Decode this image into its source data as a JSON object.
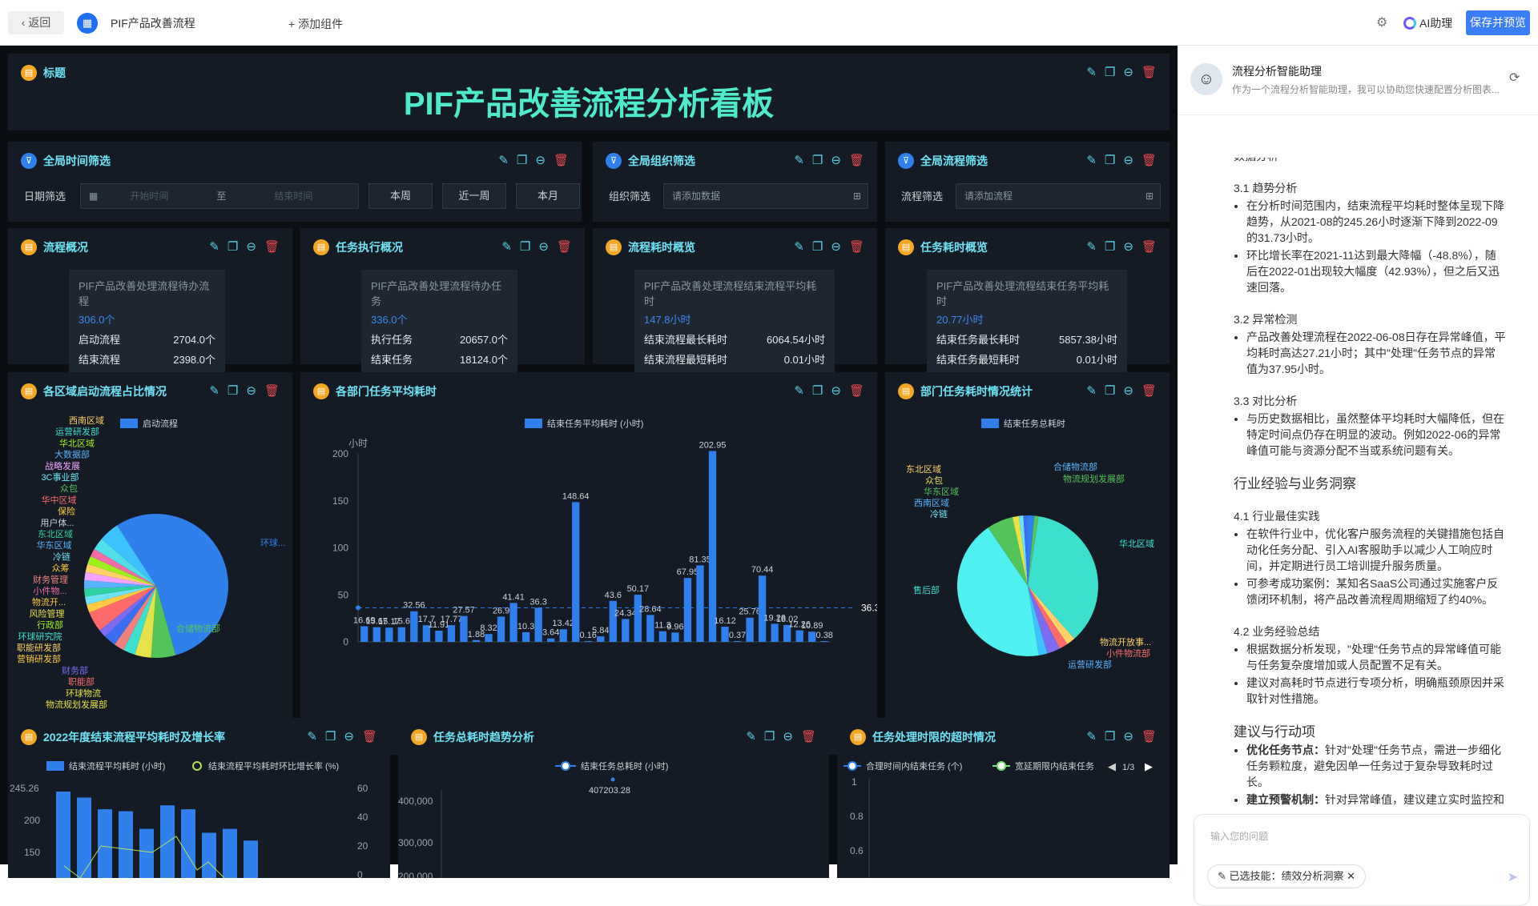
{
  "topbar": {
    "back": "返回",
    "title": "PIF产品改善流程",
    "add": "添加组件",
    "ai": "AI助理",
    "save": "保存并预览"
  },
  "title_card": {
    "label": "标题",
    "main": "PIF产品改善流程分析看板"
  },
  "filters": {
    "time": {
      "title": "全局时间筛选",
      "label": "日期筛选",
      "start": "开始时间",
      "to": "至",
      "end": "结束时间",
      "btns": [
        "本周",
        "近一周",
        "本月"
      ]
    },
    "org": {
      "title": "全局组织筛选",
      "label": "组织筛选",
      "placeholder": "请添加数据"
    },
    "flow": {
      "title": "全局流程筛选",
      "label": "流程筛选",
      "placeholder": "请添加流程"
    }
  },
  "overview": [
    {
      "title": "流程概况",
      "head": "PIF产品改善处理流程待办流程",
      "val": "306.0个",
      "rows": [
        [
          "启动流程",
          "2704.0个"
        ],
        [
          "结束流程",
          "2398.0个"
        ]
      ]
    },
    {
      "title": "任务执行概况",
      "head": "PIF产品改善处理流程待办任务",
      "val": "336.0个",
      "rows": [
        [
          "执行任务",
          "20657.0个"
        ],
        [
          "结束任务",
          "18124.0个"
        ]
      ]
    },
    {
      "title": "流程耗时概览",
      "head": "PIF产品改善处理流程结束流程平均耗时",
      "val": "147.8小时",
      "rows": [
        [
          "结束流程最长耗时",
          "6064.54小时"
        ],
        [
          "结束流程最短耗时",
          "0.01小时"
        ]
      ]
    },
    {
      "title": "任务耗时概览",
      "head": "PIF产品改善处理流程结束任务平均耗时",
      "val": "20.77小时",
      "rows": [
        [
          "结束任务最长耗时",
          "5857.38小时"
        ],
        [
          "结束任务最短耗时",
          "0.01小时"
        ]
      ]
    }
  ],
  "pie1": {
    "title": "各区域启动流程占比情况",
    "legend": "启动流程",
    "labels": [
      "西南区域",
      "运营研发部",
      "华北区域",
      "大数据部",
      "战略发展",
      "3C事业部",
      "众包",
      "华中区域",
      "保险",
      "用户体...",
      "东北区域",
      "华东区域",
      "冷链",
      "众筹",
      "财务管理",
      "小件物...",
      "物流开...",
      "风险管理",
      "行政部",
      "环球研究院",
      "职能研发部",
      "营销研发部",
      "财务部",
      "职能部",
      "环球物流",
      "物流规划发展部",
      "合储物流部",
      "环球..."
    ]
  },
  "bar": {
    "title": "各部门任务平均耗时",
    "legend": "结束任务平均耗时 (小时)",
    "unit": "小时",
    "avg": "36.3"
  },
  "pie2": {
    "title": "部门任务耗时情况统计",
    "legend": "结束任务总耗时",
    "labels": [
      "东北区域",
      "众包",
      "华东区域",
      "西南区域",
      "冷链",
      "合储物流部",
      "物流规划发展部",
      "华北区域",
      "售后部",
      "物流开放事...",
      "小件物流部",
      "运营研发部"
    ]
  },
  "line1": {
    "title": "2022年度结束流程平均耗时及增长率",
    "legend1": "结束流程平均耗时 (小时)",
    "legend2": "结束流程平均耗时环比增长率 (%)",
    "y_left": [
      "245.26",
      "200",
      "150"
    ],
    "y_right": [
      "60",
      "40",
      "20",
      "0"
    ]
  },
  "line2": {
    "title": "任务总耗时趋势分析",
    "legend": "结束任务总耗时 (小时)",
    "peak": "407203.28",
    "y": [
      "400,000",
      "300,000",
      "200,000"
    ]
  },
  "line3": {
    "title": "任务处理时限的超时情况",
    "legend1": "合理时间内结束任务 (个)",
    "legend2": "宽延期限内结束任务",
    "page": "1/3",
    "y": [
      "1",
      "0.8",
      "0.6"
    ]
  },
  "panel": {
    "name": "流程分析智能助理",
    "desc": "作为一个流程分析智能助理，我可以协助您快速配置分析图表...",
    "cut": "数据分析",
    "s1": "3.1 趋势分析",
    "s1a": "在分析时间范围内，结束流程平均耗时整体呈现下降趋势，从2021-08的245.26小时逐渐下降到2022-09的31.73小时。",
    "s1b": "环比增长率在2021-11达到最大降幅（-48.8%），随后在2022-01出现较大幅度（42.93%），但之后又迅速回落。",
    "s2": "3.2 异常检测",
    "s2a": "产品改善处理流程在2022-06-08日存在异常峰值，平均耗时高达27.21小时；其中\"处理\"任务节点的异常值为37.95小时。",
    "s3": "3.3 对比分析",
    "s3a": "与历史数据相比，虽然整体平均耗时大幅降低，但在特定时间点仍存在明显的波动。例如2022-06的异常峰值可能与资源分配不当或系统问题有关。",
    "h2": "行业经验与业务洞察",
    "s4": "4.1 行业最佳实践",
    "s4a": "在软件行业中，优化客户服务流程的关键措施包括自动化任务分配、引入AI客服助手以减少人工响应时间，并定期进行员工培训提升服务质量。",
    "s4b": "可参考成功案例：某知名SaaS公司通过实施客户反馈闭环机制，将产品改善流程周期缩短了约40%。",
    "s5": "4.2 业务经验总结",
    "s5a": "根据数据分析发现，\"处理\"任务节点的异常峰值可能与任务复杂度增加或人员配置不足有关。",
    "s5b": "建议对高耗时节点进行专项分析，明确瓶颈原因并采取针对性措施。",
    "h3": "建议与行动项",
    "r1b": "优化任务节点：",
    "r1": "针对\"处理\"任务节点，需进一步细化任务颗粒度，避免因单一任务过于复杂导致耗时过长。",
    "r2b": "建立预警机制：",
    "r2": "针对异常峰值，建议建立实时监控和",
    "input_ph": "输入您的问题",
    "chip": "已选技能：绩效分析洞察"
  },
  "chart_data": [
    {
      "type": "bar",
      "title": "各部门任务平均耗时",
      "ylabel": "小时",
      "ylim": [
        0,
        200
      ],
      "series": [
        {
          "name": "结束任务平均耗时 (小时)",
          "values": [
            16.69,
            15.67,
            15.17,
            15.6,
            32.56,
            17.7,
            11.91,
            17.77,
            27.57,
            1.88,
            8.32,
            26.9,
            41.41,
            10.3,
            36.3,
            3.64,
            13.42,
            148.64,
            0.16,
            5.84,
            43.6,
            24.34,
            50.17,
            28.64,
            11.3,
            9.96,
            67.95,
            81.35,
            202.95,
            16.12,
            0.37,
            25.76,
            70.44,
            19.26,
            18.02,
            12.26,
            10.89,
            0.38
          ]
        }
      ],
      "mark_line": 36.3
    },
    {
      "type": "pie",
      "title": "各区域启动流程占比情况",
      "series": [
        {
          "name": "启动流程"
        }
      ]
    },
    {
      "type": "pie",
      "title": "部门任务耗时情况统计",
      "series": [
        {
          "name": "结束任务总耗时"
        }
      ]
    },
    {
      "type": "bar",
      "title": "2022年度结束流程平均耗时及增长率",
      "ylim": [
        0,
        245.26
      ]
    },
    {
      "type": "line",
      "title": "任务总耗时趋势分析",
      "series": [
        {
          "name": "结束任务总耗时 (小时)",
          "peak": 407203.28
        }
      ]
    }
  ]
}
